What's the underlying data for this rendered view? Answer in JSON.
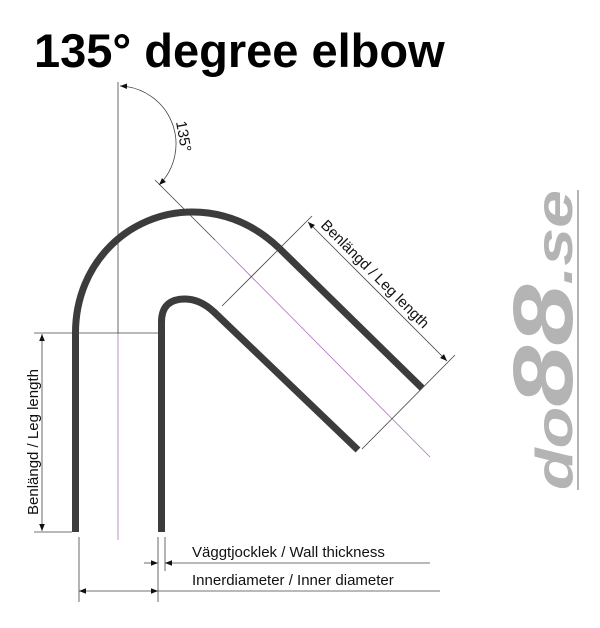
{
  "title": "135° degree elbow",
  "angle_label": "135°",
  "leg_length_label": "Benlängd / Leg length",
  "wall_thickness_label": "Väggtjocklek / Wall thickness",
  "inner_diameter_label": "Innerdiameter / Inner diameter",
  "logo": {
    "part1": "do",
    "part2": "88",
    "part3": ".se",
    "color": "#b4b4b4"
  },
  "colors": {
    "pipe": "#3c3c3c",
    "centerline": "#b070c0"
  }
}
